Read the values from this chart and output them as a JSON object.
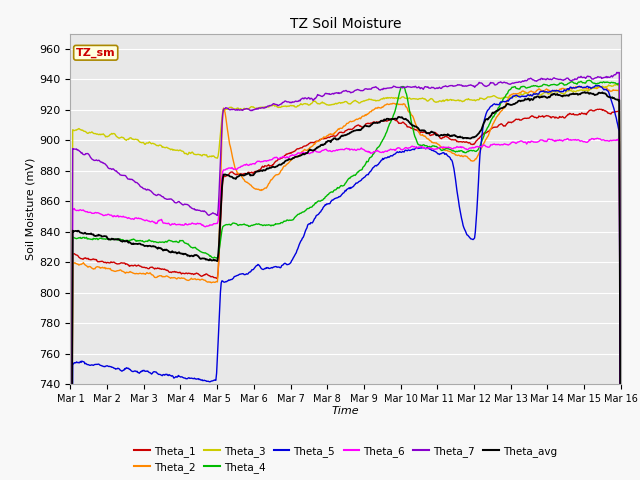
{
  "title": "TZ Soil Moisture",
  "xlabel": "Time",
  "ylabel": "Soil Moisture (mV)",
  "ylim": [
    740,
    970
  ],
  "yticks": [
    740,
    760,
    780,
    800,
    820,
    840,
    860,
    880,
    900,
    920,
    940,
    960
  ],
  "fig_bg": "#f0f0f0",
  "plot_bg": "#e8e8e8",
  "legend_label": "TZ_sm",
  "series_colors": {
    "Theta_1": "#cc0000",
    "Theta_2": "#ff8800",
    "Theta_3": "#cccc00",
    "Theta_4": "#00bb00",
    "Theta_5": "#0000dd",
    "Theta_6": "#ff00ff",
    "Theta_7": "#8800cc",
    "Theta_avg": "#000000"
  },
  "xtick_labels": [
    "Mar 1",
    "Mar 2",
    "Mar 3",
    "Mar 4",
    "Mar 5",
    "Mar 6",
    "Mar 7",
    "Mar 8",
    "Mar 9",
    "Mar 10",
    "Mar 11",
    "Mar 12",
    "Mar 13",
    "Mar 14",
    "Mar 15",
    "Mar 16"
  ],
  "n_days": 15,
  "pts_per_day": 48
}
